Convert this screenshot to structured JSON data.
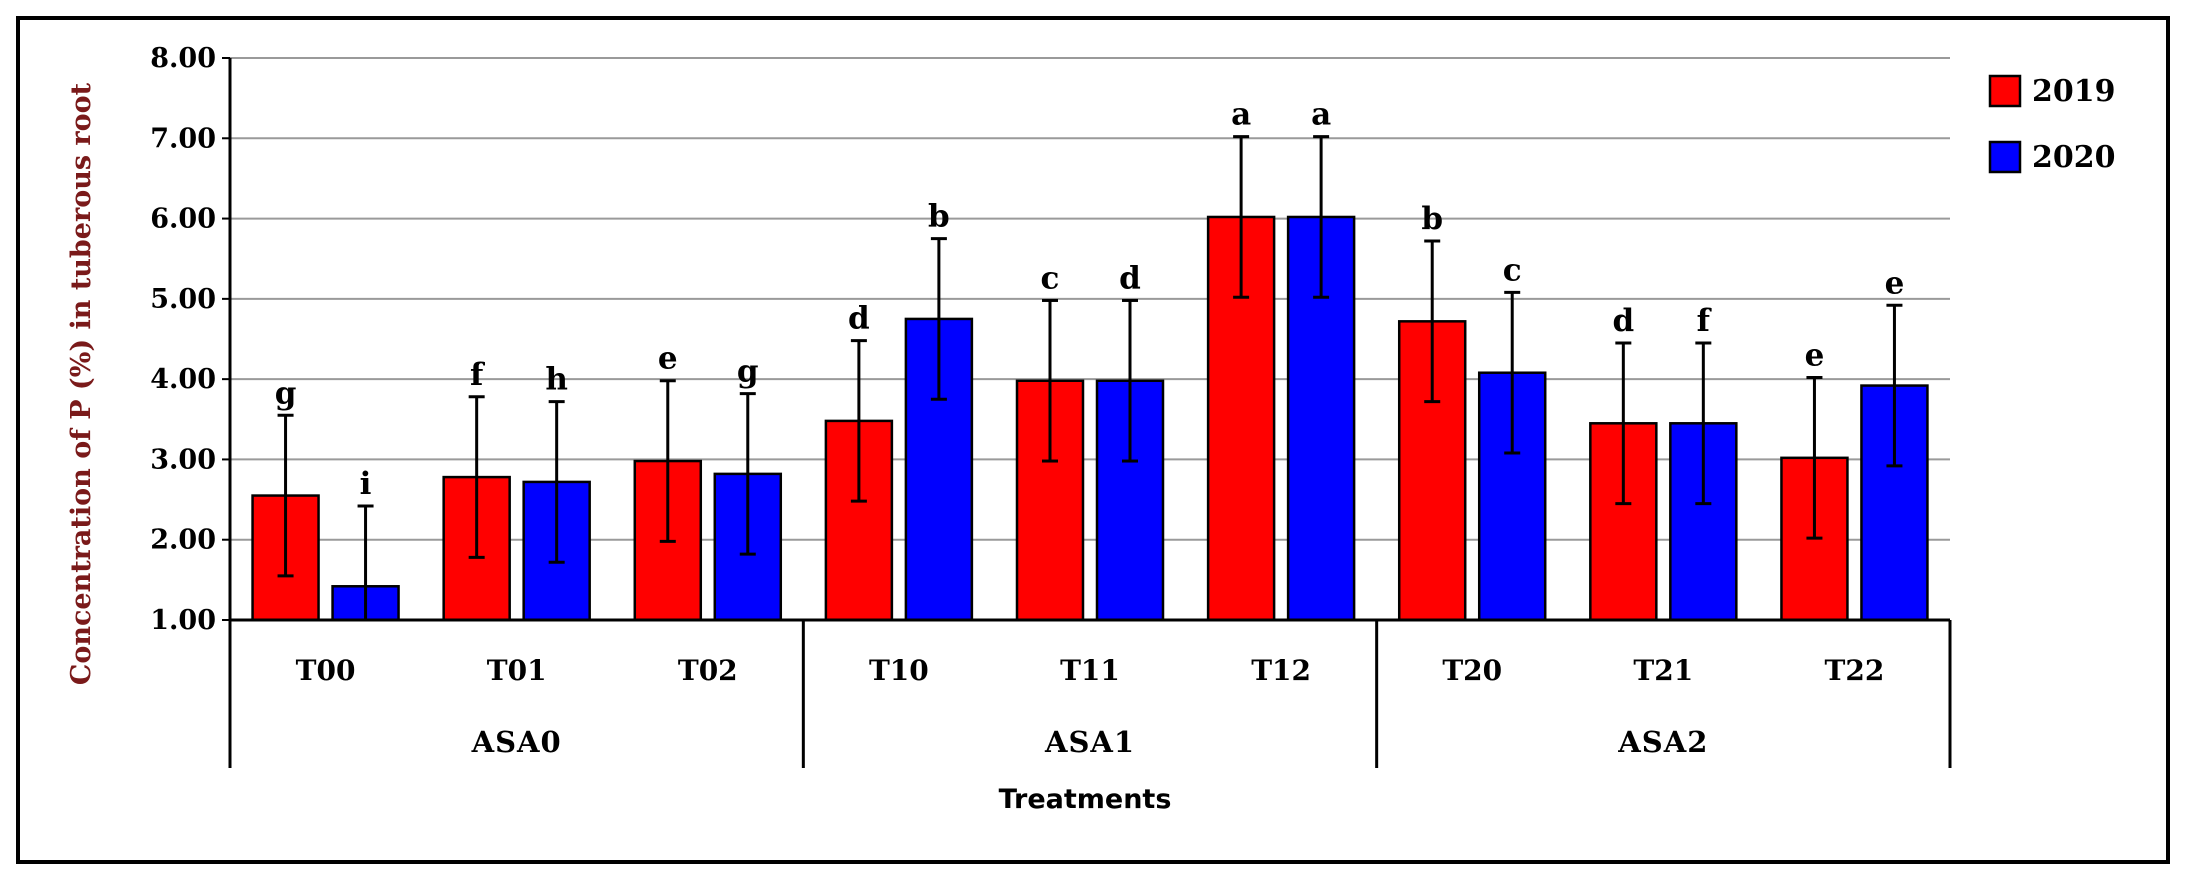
{
  "chart_data": {
    "type": "bar",
    "title": "",
    "ylabel": "Concentration of P (%) in tuberous root",
    "xlabel": "Treatments",
    "ylim": [
      1,
      8
    ],
    "yticks": [
      "1.00",
      "2.00",
      "3.00",
      "4.00",
      "5.00",
      "6.00",
      "7.00",
      "8.00"
    ],
    "grid": true,
    "legend_position": "top-right",
    "categories": [
      "T00",
      "T01",
      "T02",
      "T10",
      "T11",
      "T12",
      "T20",
      "T21",
      "T22"
    ],
    "groups": [
      {
        "label": "ASA0",
        "members": [
          "T00",
          "T01",
          "T02"
        ]
      },
      {
        "label": "ASA1",
        "members": [
          "T10",
          "T11",
          "T12"
        ]
      },
      {
        "label": "ASA2",
        "members": [
          "T20",
          "T21",
          "T22"
        ]
      }
    ],
    "series": [
      {
        "name": "2019",
        "color": "#ff0000",
        "values": [
          2.55,
          2.78,
          2.98,
          3.48,
          3.98,
          6.02,
          4.72,
          3.45,
          3.02
        ],
        "errors": [
          1.0,
          1.0,
          1.0,
          1.0,
          1.0,
          1.0,
          1.0,
          1.0,
          1.0
        ],
        "letters": [
          "g",
          "f",
          "e",
          "d",
          "c",
          "a",
          "b",
          "d",
          "e"
        ]
      },
      {
        "name": "2020",
        "color": "#0000ff",
        "values": [
          1.42,
          2.72,
          2.82,
          4.75,
          3.98,
          6.02,
          4.08,
          3.45,
          3.92
        ],
        "errors": [
          1.0,
          1.0,
          1.0,
          1.0,
          1.0,
          1.0,
          1.0,
          1.0,
          1.0
        ],
        "letters": [
          "i",
          "h",
          "g",
          "b",
          "d",
          "a",
          "c",
          "f",
          "e"
        ]
      }
    ]
  }
}
